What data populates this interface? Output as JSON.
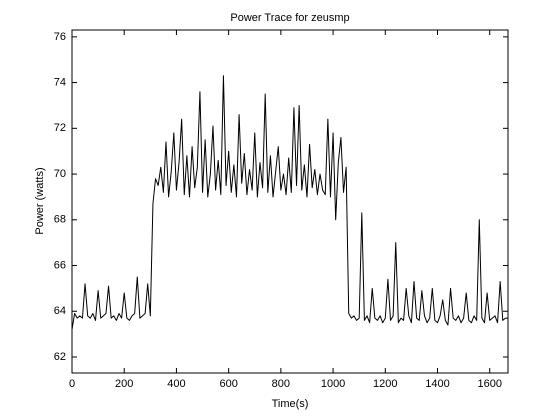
{
  "chart_data": {
    "type": "line",
    "title": "Power Trace for zeusmp",
    "x_label": "Time(s)",
    "y_label": "Power (watts)",
    "x": [
      0,
      10,
      20,
      30,
      40,
      50,
      60,
      70,
      80,
      90,
      100,
      110,
      120,
      130,
      140,
      150,
      160,
      170,
      180,
      190,
      200,
      210,
      220,
      230,
      240,
      250,
      260,
      270,
      280,
      290,
      300,
      310,
      320,
      330,
      340,
      350,
      360,
      370,
      380,
      390,
      400,
      410,
      420,
      430,
      440,
      450,
      460,
      470,
      480,
      490,
      500,
      510,
      520,
      530,
      540,
      550,
      560,
      570,
      580,
      590,
      600,
      610,
      620,
      630,
      640,
      650,
      660,
      670,
      680,
      690,
      700,
      710,
      720,
      730,
      740,
      750,
      760,
      770,
      780,
      790,
      800,
      810,
      820,
      830,
      840,
      850,
      860,
      870,
      880,
      890,
      900,
      910,
      920,
      930,
      940,
      950,
      960,
      970,
      980,
      990,
      1000,
      1010,
      1020,
      1030,
      1040,
      1050,
      1060,
      1070,
      1080,
      1090,
      1100,
      1110,
      1120,
      1130,
      1140,
      1150,
      1160,
      1170,
      1180,
      1190,
      1200,
      1210,
      1220,
      1230,
      1240,
      1250,
      1260,
      1270,
      1280,
      1290,
      1300,
      1310,
      1320,
      1330,
      1340,
      1350,
      1360,
      1370,
      1380,
      1390,
      1400,
      1410,
      1420,
      1430,
      1440,
      1450,
      1460,
      1470,
      1480,
      1490,
      1500,
      1510,
      1520,
      1530,
      1540,
      1550,
      1560,
      1570,
      1580,
      1590,
      1600,
      1610,
      1620,
      1630,
      1640,
      1650,
      1660,
      1670
    ],
    "series": [
      {
        "name": "zeusmp",
        "color": "#000000",
        "values": [
          63.2,
          63.9,
          63.7,
          63.8,
          63.7,
          65.2,
          63.8,
          63.7,
          63.9,
          63.6,
          64.9,
          63.7,
          63.8,
          63.9,
          65.1,
          63.7,
          63.8,
          63.6,
          63.9,
          63.7,
          64.8,
          63.7,
          63.6,
          63.8,
          63.9,
          65.5,
          63.7,
          63.8,
          63.9,
          65.2,
          63.8,
          68.7,
          69.8,
          69.5,
          70.3,
          69.2,
          71.4,
          69.0,
          70.1,
          71.8,
          69.3,
          70.5,
          72.4,
          69.1,
          70.8,
          69.0,
          71.2,
          69.4,
          70.3,
          73.6,
          69.2,
          71.5,
          69.0,
          70.0,
          72.1,
          69.3,
          70.6,
          69.1,
          74.3,
          69.5,
          71.0,
          69.2,
          70.4,
          69.0,
          72.6,
          69.6,
          70.9,
          69.1,
          70.2,
          69.3,
          71.8,
          69.0,
          70.5,
          69.4,
          73.5,
          69.2,
          70.8,
          69.0,
          70.1,
          71.2,
          69.3,
          70.0,
          69.1,
          70.7,
          69.2,
          72.9,
          69.5,
          73.0,
          69.3,
          70.4,
          69.0,
          71.3,
          69.4,
          70.2,
          69.1,
          70.0,
          69.3,
          69.1,
          72.4,
          69.0,
          71.8,
          68.0,
          70.5,
          71.6,
          69.2,
          70.3,
          63.9,
          63.7,
          63.8,
          63.6,
          63.7,
          68.3,
          63.6,
          63.8,
          63.5,
          65.0,
          63.7,
          63.6,
          63.8,
          63.5,
          63.7,
          65.4,
          63.6,
          63.8,
          67.0,
          63.5,
          63.7,
          63.6,
          65.0,
          63.8,
          63.5,
          65.3,
          63.7,
          63.6,
          64.9,
          63.8,
          63.5,
          63.7,
          65.0,
          63.6,
          63.5,
          63.8,
          64.5,
          63.6,
          63.4,
          65.0,
          63.7,
          63.6,
          63.8,
          63.5,
          63.7,
          64.8,
          63.6,
          63.5,
          63.8,
          63.6,
          68.0,
          63.7,
          63.5,
          64.8,
          63.6,
          63.7,
          63.8,
          63.5,
          65.3,
          63.6,
          63.7,
          63.7
        ]
      }
    ],
    "xlim": [
      0,
      1670
    ],
    "ylim": [
      61.3,
      76.3
    ],
    "xticks": [
      0,
      200,
      400,
      600,
      800,
      1000,
      1200,
      1400,
      1600
    ],
    "yticks": [
      62,
      64,
      66,
      68,
      70,
      72,
      74,
      76
    ],
    "grid": false
  }
}
